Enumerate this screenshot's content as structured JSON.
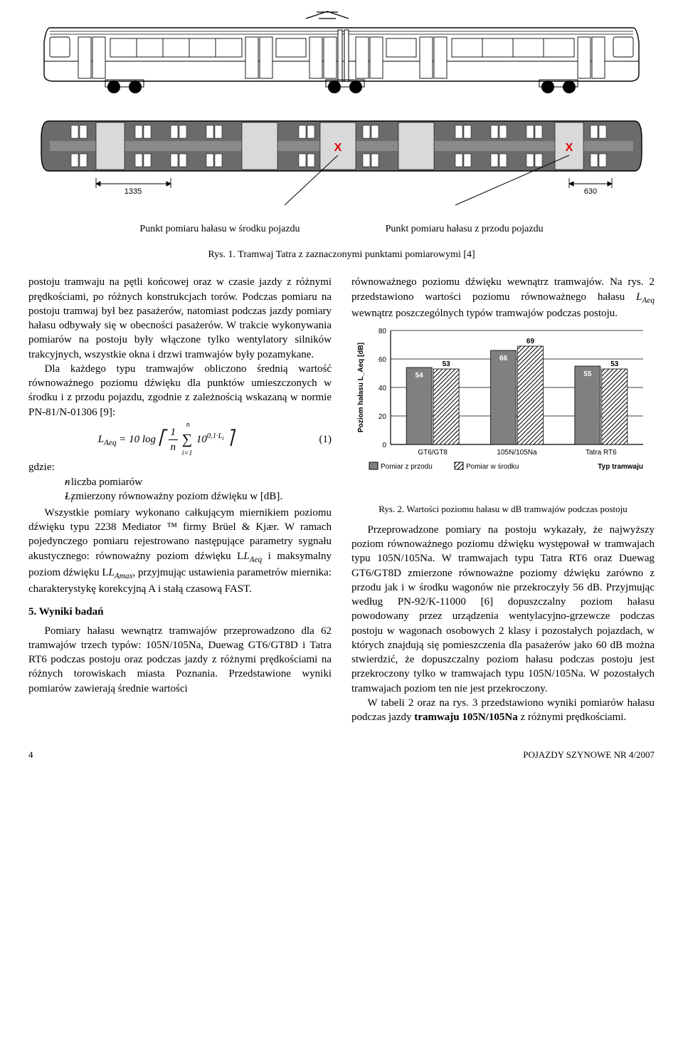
{
  "figure1": {
    "callout_left": "Punkt pomiaru hałasu w środku pojazdu",
    "callout_right": "Punkt pomiaru hałasu z przodu pojazdu",
    "caption": "Rys. 1. Tramwaj Tatra z zaznaczonymi punktami pomiarowymi [4]",
    "dim_left": "1335",
    "dim_right": "630",
    "marker_label": "X"
  },
  "col_left": {
    "p1a": "postoju tramwaju na pętli końcowej oraz w czasie jazdy z różnymi prędkościami, po różnych konstrukcjach torów. Podczas pomiaru na postoju tramwaj był bez pasażerów, natomiast podczas jazdy pomiary hałasu odbywały się w obecności pasażerów. W trakcie wykonywania pomiarów na postoju były włączone tylko wentylatory silników trakcyjnych, wszystkie okna i drzwi tramwajów były pozamykane.",
    "p1b": "Dla każdego typu tramwajów obliczono średnią wartość równoważnego poziomu dźwięku dla punktów umieszczonych w środku i z przodu pojazdu, zgodnie z zależnością wskazaną w normie PN-81/N-01306 [9]:",
    "eq_num": "(1)",
    "gdzie": "gdzie:",
    "where_n": "- liczba pomiarów",
    "where_Li": "- zmierzony równoważny poziom dźwięku w [dB].",
    "p2": "Wszystkie pomiary wykonano całkującym miernikiem poziomu dźwięku typu 2238 Mediator ™ firmy Brüel & Kjær. W ramach pojedynczego pomiaru rejestrowano następujące parametry sygnału akustycznego: równoważny poziom dźwięku L",
    "p2b": " i maksymalny poziom dźwięku L",
    "p2c": ", przyjmując ustawienia parametrów miernika: charakterystykę korekcyjną A i stałą czasową FAST.",
    "h_wyniki": "5. Wyniki badań",
    "p3": "Pomiary hałasu wewnątrz tramwajów przeprowadzono dla 62 tramwajów trzech typów: 105N/105Na, Duewag GT6/GT8D i Tatra RT6 podczas postoju oraz podczas jazdy z różnymi prędkościami na różnych torowiskach miasta Poznania. Przedstawione wyniki pomiarów zawierają średnie wartości"
  },
  "col_right": {
    "p1a": "równoważnego poziomu dźwięku wewnątrz tramwajów. Na rys. 2 przedstawiono wartości poziomu równoważnego hałasu ",
    "p1b": " wewnątrz poszczególnych typów tramwajów podczas postoju.",
    "p2": "Przeprowadzone pomiary na postoju wykazały, że najwyższy poziom równoważnego poziomu dźwięku występował w tramwajach typu 105N/105Na. W tramwajach typu Tatra RT6 oraz Duewag GT6/GT8D zmierzone równoważne poziomy dźwięku zarówno z przodu jak i w środku wagonów nie przekroczyły 56 dB. Przyjmując według PN-92/K-11000 [6] dopuszczalny poziom hałasu powodowany przez urządzenia wentylacyjno-grzewcze podczas postoju w wagonach osobowych 2 klasy i pozostałych pojazdach, w których znajdują się pomieszczenia dla pasażerów jako 60 dB można stwierdzić, że dopuszczalny poziom hałasu podczas postoju jest przekroczony tylko w tramwajach typu 105N/105Na. W pozostałych tramwajach poziom ten nie jest przekroczony.",
    "p3a": "W tabeli 2 oraz na rys. 3 przedstawiono wyniki pomiarów hałasu podczas jazdy ",
    "p3b": "tramwaju 105N/105Na",
    "p3c": " z różnymi prędkościami."
  },
  "chart": {
    "type": "bar",
    "ylabel": "Poziom hałasu L_Aeq [dB]",
    "xlabel": "Typ tramwaju",
    "categories": [
      "GT6/GT8",
      "105N/105Na",
      "Tatra RT6"
    ],
    "series": [
      {
        "name": "Pomiar z przodu",
        "values": [
          54,
          66,
          55
        ],
        "fill": "#808080",
        "pattern": "solid",
        "labels": [
          "54",
          "66",
          "55"
        ],
        "label_pos": "inside"
      },
      {
        "name": "Pomiar w środku",
        "values": [
          53,
          69,
          53
        ],
        "fill": "#ffffff",
        "pattern": "hatch",
        "labels": [
          "53",
          "69",
          "53"
        ],
        "label_pos": "above"
      }
    ],
    "ylim": [
      0,
      80
    ],
    "ytick_step": 20,
    "yticks": [
      "0",
      "20",
      "40",
      "60",
      "80"
    ],
    "grid_color": "#000000",
    "background": "#ffffff",
    "bar_width": 0.38,
    "font_size_axis": 10,
    "font_size_label": 10,
    "caption": "Rys. 2. Wartości poziomu hałasu w dB tramwajów podczas postoju"
  },
  "footer": {
    "page": "4",
    "journal": "POJAZDY SZYNOWE NR 4/2007"
  }
}
